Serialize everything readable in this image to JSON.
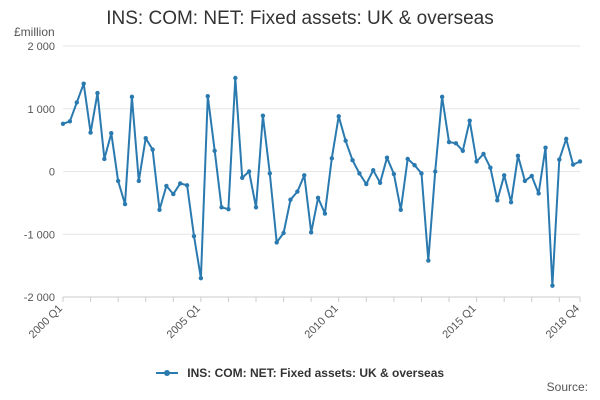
{
  "chart_data": {
    "type": "line",
    "title": "INS: COM: NET: Fixed assets: UK & overseas",
    "ylabel": "£million",
    "source_label": "Source:",
    "ylim": [
      -2000,
      2000
    ],
    "y_ticks": [
      {
        "value": 2000,
        "label": "2 000"
      },
      {
        "value": 1000,
        "label": "1 000"
      },
      {
        "value": 0,
        "label": "0"
      },
      {
        "value": -1000,
        "label": "-1 000"
      },
      {
        "value": -2000,
        "label": "-2 000"
      }
    ],
    "x_ticks": [
      {
        "index": 0,
        "label": "2000 Q1"
      },
      {
        "index": 20,
        "label": "2005 Q1"
      },
      {
        "index": 40,
        "label": "2010 Q1"
      },
      {
        "index": 60,
        "label": "2015 Q1"
      },
      {
        "index": 75,
        "label": "2018 Q4"
      }
    ],
    "grid": true,
    "legend_position": "bottom",
    "color": "#2a7ab0",
    "series": [
      {
        "name": "INS: COM: NET: Fixed assets: UK & overseas",
        "values": [
          760,
          800,
          1100,
          1400,
          620,
          1250,
          200,
          610,
          -150,
          -520,
          1190,
          -150,
          530,
          350,
          -610,
          -230,
          -360,
          -190,
          -220,
          -1030,
          -1700,
          1200,
          330,
          -570,
          -600,
          1490,
          -100,
          0,
          -570,
          890,
          -30,
          -1130,
          -980,
          -450,
          -320,
          -60,
          -970,
          -420,
          -670,
          210,
          880,
          490,
          180,
          -30,
          -200,
          20,
          -180,
          220,
          -40,
          -610,
          200,
          100,
          -30,
          -1420,
          0,
          1190,
          470,
          450,
          330,
          810,
          160,
          280,
          60,
          -460,
          -60,
          -490,
          250,
          -150,
          -70,
          -350,
          380,
          -1820,
          190,
          520,
          110,
          160
        ]
      }
    ]
  }
}
